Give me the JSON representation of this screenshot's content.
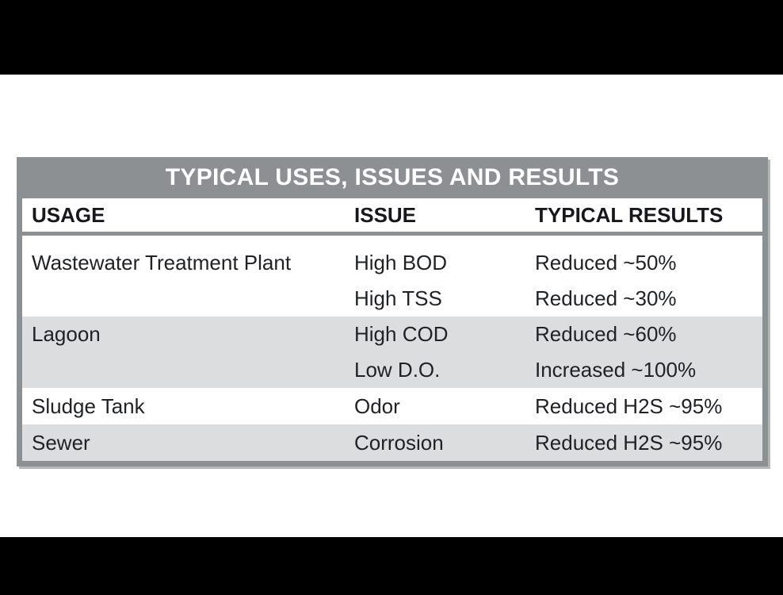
{
  "table": {
    "title": "TYPICAL USES, ISSUES AND RESULTS",
    "columns": [
      "USAGE",
      "ISSUE",
      "TYPICAL RESULTS"
    ],
    "groups": [
      {
        "usage": "Wastewater Treatment Plant",
        "rows": [
          {
            "issue": "High BOD",
            "result": "Reduced ~50%"
          },
          {
            "issue": "High TSS",
            "result": "Reduced ~30%"
          }
        ]
      },
      {
        "usage": "Lagoon",
        "rows": [
          {
            "issue": "High COD",
            "result": "Reduced ~60%"
          },
          {
            "issue": "Low D.O.",
            "result": "Increased ~100%"
          }
        ]
      },
      {
        "usage": "Sludge Tank",
        "rows": [
          {
            "issue": "Odor",
            "result": "Reduced H2S ~95%"
          }
        ]
      },
      {
        "usage": "Sewer",
        "rows": [
          {
            "issue": "Corrosion",
            "result": "Reduced H2S ~95%"
          }
        ]
      }
    ],
    "colors": {
      "frame_and_title_bar": "#8c9093",
      "row_stripe": "#dcddde",
      "title_text": "#ffffff",
      "body_text": "#202226",
      "letterbox": "#000000",
      "page_background": "#ffffff"
    }
  }
}
